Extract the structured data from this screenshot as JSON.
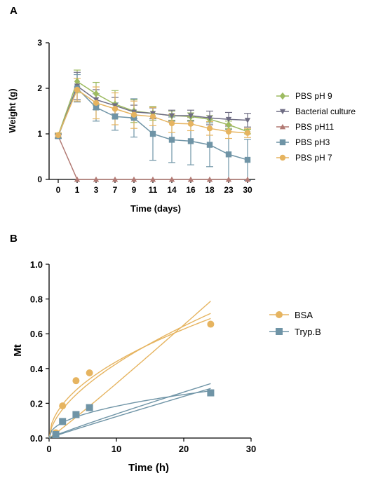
{
  "chart_data": [
    {
      "panel": "A",
      "type": "line",
      "xlabel": "Time (days)",
      "ylabel": "Weight (g)",
      "categories": [
        "0",
        "1",
        "3",
        "7",
        "9",
        "11",
        "14",
        "16",
        "18",
        "23",
        "30"
      ],
      "y_ticks": [
        0,
        1,
        2,
        3
      ],
      "ylim": [
        0,
        3
      ],
      "legend_position": "right",
      "error_bars": true,
      "series": [
        {
          "name": "PBS pH 9",
          "color": "#9dbb61",
          "marker": "diamond",
          "values": [
            0.97,
            2.15,
            1.88,
            1.65,
            1.5,
            1.45,
            1.4,
            1.38,
            1.32,
            1.2,
            1.05
          ],
          "errors": [
            0.05,
            0.25,
            0.25,
            0.3,
            0.25,
            0.15,
            0.1,
            0.08,
            0.08,
            0.08,
            0.05
          ]
        },
        {
          "name": "Bacterial culture",
          "color": "#6f6d84",
          "marker": "triangle-down",
          "values": [
            0.95,
            2.05,
            1.75,
            1.62,
            1.48,
            1.45,
            1.4,
            1.4,
            1.35,
            1.32,
            1.3
          ],
          "errors": [
            0.05,
            0.3,
            0.22,
            0.18,
            0.15,
            0.12,
            0.12,
            0.12,
            0.15,
            0.15,
            0.15
          ]
        },
        {
          "name": "PBS pH11",
          "color": "#b27a74",
          "marker": "triangle-up",
          "values": [
            0.95,
            0,
            0,
            0,
            0,
            0,
            0,
            0,
            0,
            0,
            0
          ],
          "errors": [
            0.03,
            0,
            0,
            0,
            0,
            0,
            0,
            0,
            0,
            0,
            0
          ]
        },
        {
          "name": "PBS pH3",
          "color": "#6f94a6",
          "marker": "square",
          "values": [
            0.95,
            2.0,
            1.58,
            1.38,
            1.35,
            1.0,
            0.87,
            0.84,
            0.76,
            0.55,
            0.43
          ],
          "errors": [
            0.05,
            0.3,
            0.3,
            0.3,
            0.42,
            0.58,
            0.5,
            0.52,
            0.48,
            0.55,
            0.45
          ]
        },
        {
          "name": "PBS pH 7",
          "color": "#e6b460",
          "marker": "circle",
          "values": [
            0.97,
            1.97,
            1.68,
            1.55,
            1.42,
            1.38,
            1.23,
            1.22,
            1.12,
            1.05,
            1.02
          ],
          "errors": [
            0.05,
            0.25,
            0.35,
            0.35,
            0.3,
            0.2,
            0.2,
            0.15,
            0.15,
            0.15,
            0.1
          ]
        }
      ]
    },
    {
      "panel": "B",
      "type": "scatter",
      "xlabel": "Time (h)",
      "ylabel": "Mt",
      "xlim": [
        0,
        30
      ],
      "ylim": [
        0,
        1.0
      ],
      "x_ticks": [
        0,
        10,
        20,
        30
      ],
      "y_ticks": [
        "0.0",
        "0.2",
        "0.4",
        "0.6",
        "0.8",
        "1.0"
      ],
      "legend_position": "right",
      "series": [
        {
          "name": "BSA",
          "color": "#e6b460",
          "marker": "circle",
          "x": [
            1,
            2,
            4,
            6,
            24
          ],
          "y": [
            0.03,
            0.185,
            0.33,
            0.375,
            0.655
          ],
          "fits": [
            {
              "k": 0.11,
              "n": 0.59
            },
            {
              "k": 0.136,
              "n": 0.51
            },
            {
              "k": 0.028,
              "n": 1.05
            }
          ]
        },
        {
          "name": "Tryp.B",
          "color": "#6f94a6",
          "marker": "square",
          "x": [
            1,
            2,
            4,
            6,
            24
          ],
          "y": [
            0.02,
            0.095,
            0.135,
            0.175,
            0.26
          ],
          "fits": [
            {
              "k": 0.065,
              "n": 0.45
            },
            {
              "k": 0.0163,
              "n": 0.93
            },
            {
              "k": 0.0135,
              "n": 0.96
            }
          ]
        }
      ]
    }
  ],
  "panels": {
    "a_label": "A",
    "b_label": "B"
  }
}
